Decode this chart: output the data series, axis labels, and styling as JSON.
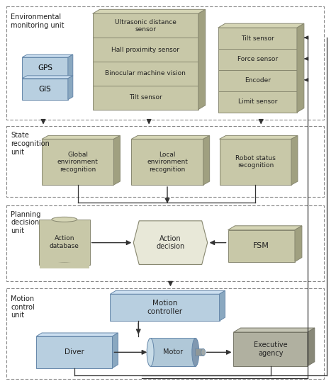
{
  "bg_color": "#ffffff",
  "green_face": "#c8c8a8",
  "green_top": "#d5d5b5",
  "green_side": "#a0a080",
  "blue_face": "#b8cfe0",
  "blue_top": "#ccdff0",
  "blue_side": "#8aa8c0",
  "gray_face": "#b0b0a0",
  "gray_top": "#c5c5b5",
  "gray_side": "#888878",
  "edge_green": "#888870",
  "edge_blue": "#6688aa",
  "edge_gray": "#777768",
  "dash_color": "#888888",
  "arrow_color": "#333333",
  "text_color": "#222222",
  "section1_label": "Environmental\nmonitoring unit",
  "section2_label": "State\nrecognition\nunit",
  "section3_label": "Planning\ndecision\nunit",
  "section4_label": "Motion\ncontrol\nunit",
  "mid_labels": [
    "Ultrasonic distance\nsensor",
    "Hall proximity sensor",
    "Binocular machine vision",
    "Tilt sensor"
  ],
  "right_labels": [
    "Tilt sensor",
    "Force sensor",
    "Encoder",
    "Limit sensor"
  ],
  "state_labels": [
    "Global\nenvironment\nrecognition",
    "Local\nenvironment\nrecognition",
    "Robot status\nrecognition"
  ]
}
